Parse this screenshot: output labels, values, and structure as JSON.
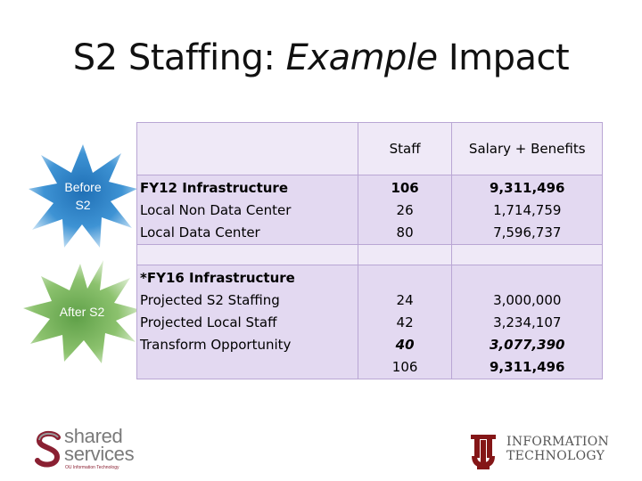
{
  "slide": {
    "title_before": "S2 Staffing: ",
    "title_italic": "Example",
    "title_after": " Impact"
  },
  "bursts": {
    "before": {
      "line1": "Before",
      "line2": "S2",
      "color": "#2f86c9"
    },
    "after": {
      "label": "After S2",
      "color": "#6aa84f"
    }
  },
  "table": {
    "headers": {
      "col1": "",
      "staff": "Staff",
      "salary": "Salary + Benefits"
    },
    "fy12": {
      "rows": [
        "FY12 Infrastructure",
        "Local Non Data Center",
        "Local Data Center"
      ],
      "staff": [
        "106",
        "26",
        "80"
      ],
      "salary": [
        "9,311,496",
        "1,714,759",
        "7,596,737"
      ]
    },
    "fy16": {
      "rows": [
        "*FY16 Infrastructure",
        "Projected S2 Staffing",
        "Projected Local Staff",
        "Transform Opportunity"
      ],
      "staff": [
        "24",
        "42",
        "40",
        "106"
      ],
      "salary": [
        "3,000,000",
        "3,234,107",
        "3,077,390",
        "9,311,496"
      ]
    }
  },
  "logos": {
    "shared_line1": "shared",
    "shared_line2": "services",
    "shared_tagline": "OU Information Technology",
    "it_line1": "INFORMATION",
    "it_line2": "TECHNOLOGY",
    "ou_color": "#841617"
  }
}
